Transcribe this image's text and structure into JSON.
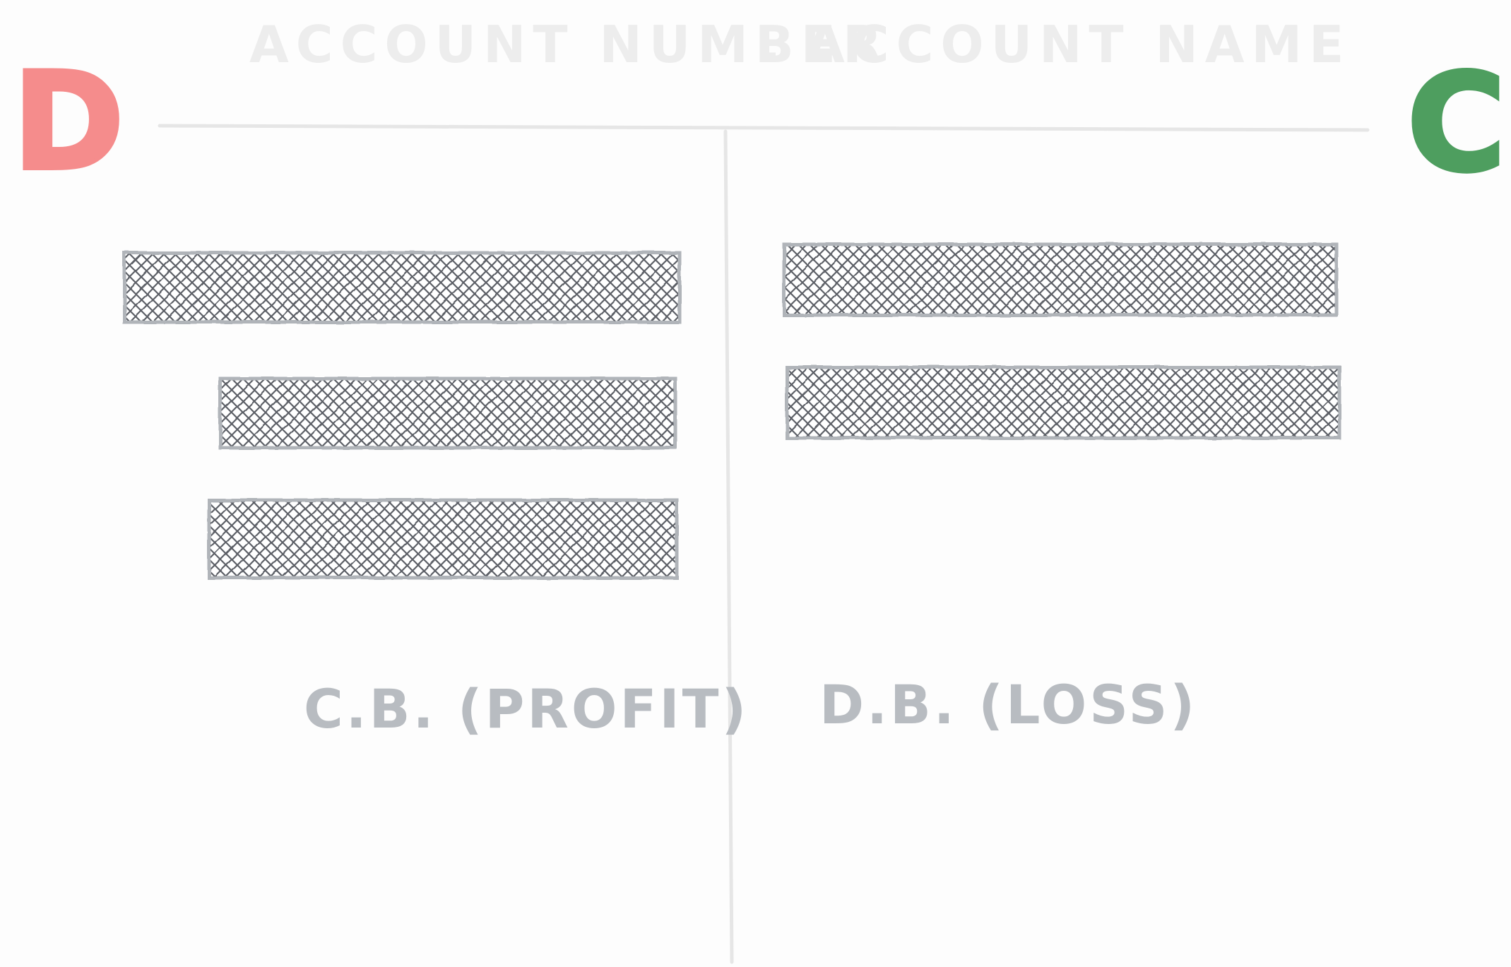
{
  "header": {
    "account_number": "ACCOUNT NUMBER",
    "separator": ".",
    "account_name": "ACCOUNT NAME"
  },
  "debit_side": {
    "letter": "D",
    "color": "#f58c8c",
    "entry_count": 3,
    "balance_label": "C.B. (PROFIT)"
  },
  "credit_side": {
    "letter": "C",
    "color": "#4e9e5f",
    "entry_count": 2,
    "balance_label": "D.B. (LOSS)"
  },
  "styles": {
    "line_color": "#e6e6e6",
    "entry_fill": "#5b5f66",
    "entry_border": "#b0b4b9",
    "label_color": "#b8bcc1",
    "header_color": "#ededed"
  }
}
